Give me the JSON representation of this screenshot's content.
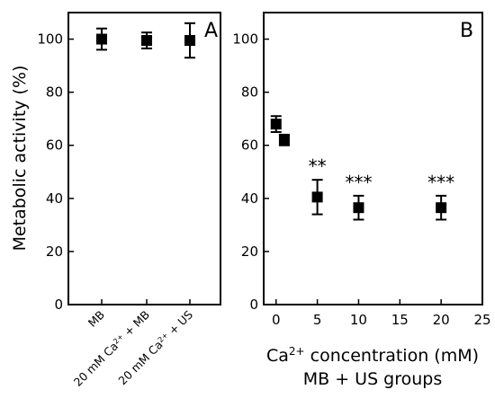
{
  "chart_data": [
    {
      "panel": "A",
      "type": "scatter",
      "panel_label": "A",
      "categories": [
        {
          "main": "MB",
          "sup": "",
          "tail": ""
        },
        {
          "main": "20 mM Ca",
          "sup": "2+",
          "tail": " + MB"
        },
        {
          "main": "20 mM Ca",
          "sup": "2+",
          "tail": " + US"
        }
      ],
      "values": [
        100,
        99.5,
        99.5
      ],
      "errors": [
        4,
        3,
        6.5
      ],
      "ylabel": "Metabolic activity (%)",
      "ylim": [
        0,
        110
      ],
      "yticks": [
        0,
        20,
        40,
        60,
        80,
        100
      ]
    },
    {
      "panel": "B",
      "type": "scatter",
      "panel_label": "B",
      "x": [
        0,
        1,
        5,
        10,
        20
      ],
      "values": [
        68,
        62,
        40.5,
        36.5,
        36.5
      ],
      "errors": [
        3,
        2,
        6.5,
        4.5,
        4.5
      ],
      "significance": [
        "",
        "",
        "**",
        "***",
        "***"
      ],
      "xlabel_main": "Ca",
      "xlabel_sup": "2+",
      "xlabel_tail": " concentration (mM)",
      "xlabel_line2": "MB + US groups",
      "xlim": [
        -1.5,
        25
      ],
      "ylim": [
        0,
        110
      ],
      "xticks": [
        0,
        5,
        10,
        15,
        20,
        25
      ],
      "yticks": [
        0,
        20,
        40,
        60,
        80,
        100
      ]
    }
  ]
}
